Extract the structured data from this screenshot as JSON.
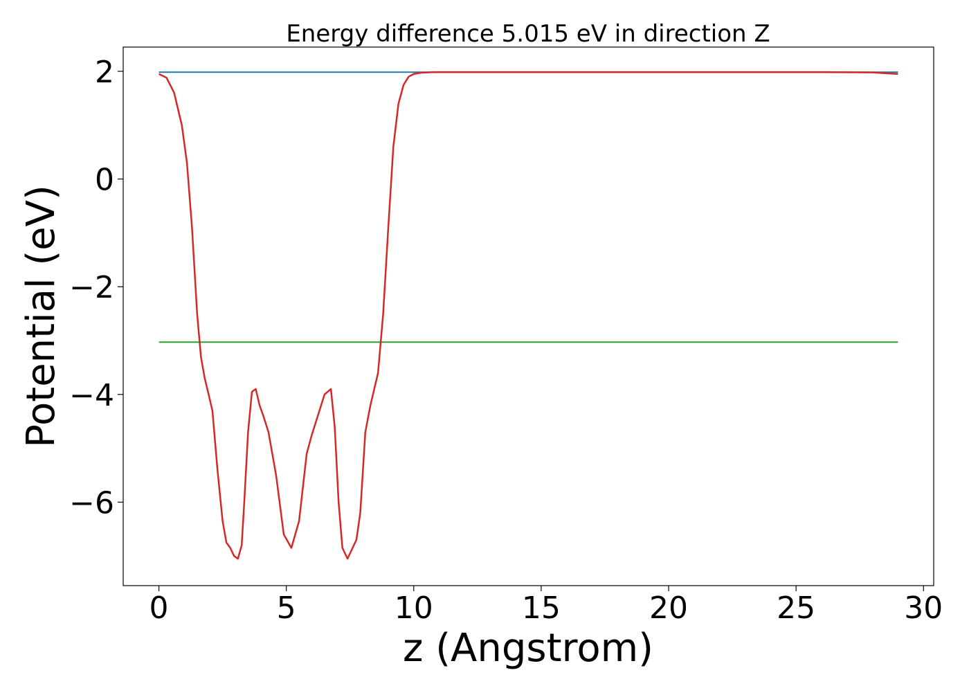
{
  "chart_data": {
    "type": "line",
    "title": "Energy difference 5.015 eV in direction Z",
    "xlabel": "z (Angstrom)",
    "ylabel": "Potential (eV)",
    "xlim": [
      -1.4,
      30.4
    ],
    "ylim": [
      -7.55,
      2.45
    ],
    "x_ticks": [
      0,
      5,
      10,
      15,
      20,
      25,
      30
    ],
    "x_tick_labels": [
      "0",
      "5",
      "10",
      "15",
      "20",
      "25",
      "30"
    ],
    "y_ticks": [
      2,
      0,
      -2,
      -4,
      -6
    ],
    "y_tick_labels": [
      "2",
      "0",
      "−2",
      "−4",
      "−6"
    ],
    "grid": false,
    "legend": "none",
    "series": [
      {
        "color": "#1f77b4",
        "x": [
          0,
          29
        ],
        "y": [
          1.985,
          1.985
        ]
      },
      {
        "color": "#2ca02c",
        "x": [
          0,
          29
        ],
        "y": [
          -3.03,
          -3.03
        ]
      },
      {
        "color": "#d62728",
        "x": [
          0,
          0.3,
          0.6,
          0.9,
          1.1,
          1.3,
          1.5,
          1.65,
          1.8,
          1.95,
          2.1,
          2.3,
          2.5,
          2.65,
          2.8,
          2.95,
          3.1,
          3.25,
          3.35,
          3.5,
          3.65,
          3.8,
          3.95,
          4.1,
          4.3,
          4.6,
          4.9,
          5.2,
          5.5,
          5.8,
          6.0,
          6.2,
          6.5,
          6.75,
          6.9,
          7.05,
          7.2,
          7.4,
          7.6,
          7.75,
          7.9,
          8.1,
          8.3,
          8.6,
          8.8,
          9.0,
          9.2,
          9.4,
          9.6,
          9.8,
          10.0,
          10.3,
          10.7,
          11.2,
          12.0,
          14.0,
          20.0,
          26.0,
          28.0,
          29.0
        ],
        "y": [
          1.95,
          1.88,
          1.6,
          1.0,
          0.3,
          -0.9,
          -2.5,
          -3.3,
          -3.7,
          -4.0,
          -4.3,
          -5.4,
          -6.35,
          -6.75,
          -6.85,
          -7.0,
          -7.05,
          -6.8,
          -6.0,
          -4.7,
          -3.95,
          -3.9,
          -4.2,
          -4.4,
          -4.7,
          -5.5,
          -6.6,
          -6.85,
          -6.35,
          -5.1,
          -4.75,
          -4.45,
          -4.0,
          -3.9,
          -4.6,
          -6.0,
          -6.85,
          -7.05,
          -6.85,
          -6.7,
          -6.2,
          -4.7,
          -4.2,
          -3.6,
          -2.5,
          -0.9,
          0.6,
          1.4,
          1.75,
          1.9,
          1.95,
          1.975,
          1.982,
          1.985,
          1.985,
          1.985,
          1.985,
          1.985,
          1.98,
          1.95
        ]
      }
    ]
  }
}
